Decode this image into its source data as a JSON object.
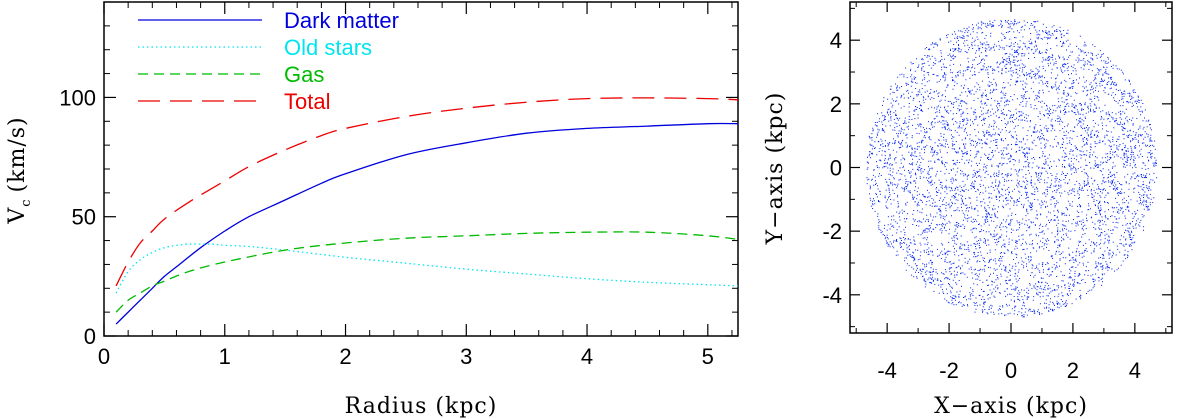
{
  "chart_data": [
    {
      "type": "line",
      "xlabel": "Radius (kpc)",
      "ylabel": "V",
      "ylabel_sub": "c",
      "ylabel_unit": "(km/s)",
      "xlim": [
        0,
        5.25
      ],
      "ylim": [
        0,
        140
      ],
      "xticks": [
        0,
        1,
        2,
        3,
        4,
        5
      ],
      "yticks": [
        0,
        50,
        100
      ],
      "legend_position": "top-left",
      "series": [
        {
          "name": "Dark matter",
          "color": "#0000dd",
          "style": "solid",
          "x": [
            0.1,
            0.2,
            0.3,
            0.4,
            0.5,
            0.6,
            0.8,
            1.0,
            1.2,
            1.5,
            1.8,
            2.0,
            2.5,
            3.0,
            3.5,
            4.0,
            4.5,
            5.0,
            5.25
          ],
          "y": [
            5,
            10,
            15,
            20,
            25,
            29,
            37,
            44,
            50,
            57,
            64,
            68,
            76,
            81,
            85,
            87,
            88,
            89,
            89
          ]
        },
        {
          "name": "Old stars",
          "color": "#00e5ee",
          "style": "dotted",
          "x": [
            0.1,
            0.2,
            0.3,
            0.4,
            0.5,
            0.6,
            0.7,
            0.8,
            0.9,
            1.0,
            1.2,
            1.5,
            2.0,
            2.5,
            3.0,
            3.5,
            4.0,
            4.5,
            5.0,
            5.25
          ],
          "y": [
            18,
            27,
            32,
            35,
            37,
            38,
            38.5,
            38.5,
            38.5,
            38,
            37.5,
            36,
            33,
            30.5,
            28,
            26,
            24,
            22.5,
            21.5,
            21
          ]
        },
        {
          "name": "Gas",
          "color": "#00bb00",
          "style": "dashed",
          "x": [
            0.1,
            0.2,
            0.3,
            0.4,
            0.5,
            0.7,
            1.0,
            1.5,
            2.0,
            2.5,
            3.0,
            3.5,
            4.0,
            4.5,
            5.0,
            5.25
          ],
          "y": [
            10,
            15,
            18,
            21,
            23,
            27,
            31,
            36,
            39,
            41,
            42,
            43,
            43.5,
            43.5,
            42,
            40.5
          ]
        },
        {
          "name": "Total",
          "color": "#ee0000",
          "style": "longdash",
          "x": [
            0.1,
            0.2,
            0.3,
            0.4,
            0.5,
            0.7,
            1.0,
            1.2,
            1.5,
            1.8,
            2.0,
            2.5,
            3.0,
            3.5,
            4.0,
            4.5,
            5.0,
            5.25
          ],
          "y": [
            21,
            31,
            39,
            44,
            49,
            56,
            65,
            71,
            78,
            84,
            87,
            92,
            95.5,
            98,
            99.5,
            99.8,
            99.5,
            99
          ]
        }
      ]
    },
    {
      "type": "scatter",
      "xlabel": "X−axis (kpc)",
      "ylabel": "Y−axis (kpc)",
      "xlim": [
        -5.2,
        5.2
      ],
      "ylim": [
        -5.2,
        5.2
      ],
      "xticks": [
        -4,
        -2,
        0,
        2,
        4
      ],
      "yticks": [
        -4,
        -2,
        0,
        2,
        4
      ],
      "xtick_labels": [
        "-4",
        "-2",
        "0",
        "2",
        "4"
      ],
      "ytick_labels": [
        "-4",
        "-2",
        "0",
        "2",
        "4"
      ],
      "disk_radius": 4.7,
      "point_color": "#0022ee"
    }
  ]
}
